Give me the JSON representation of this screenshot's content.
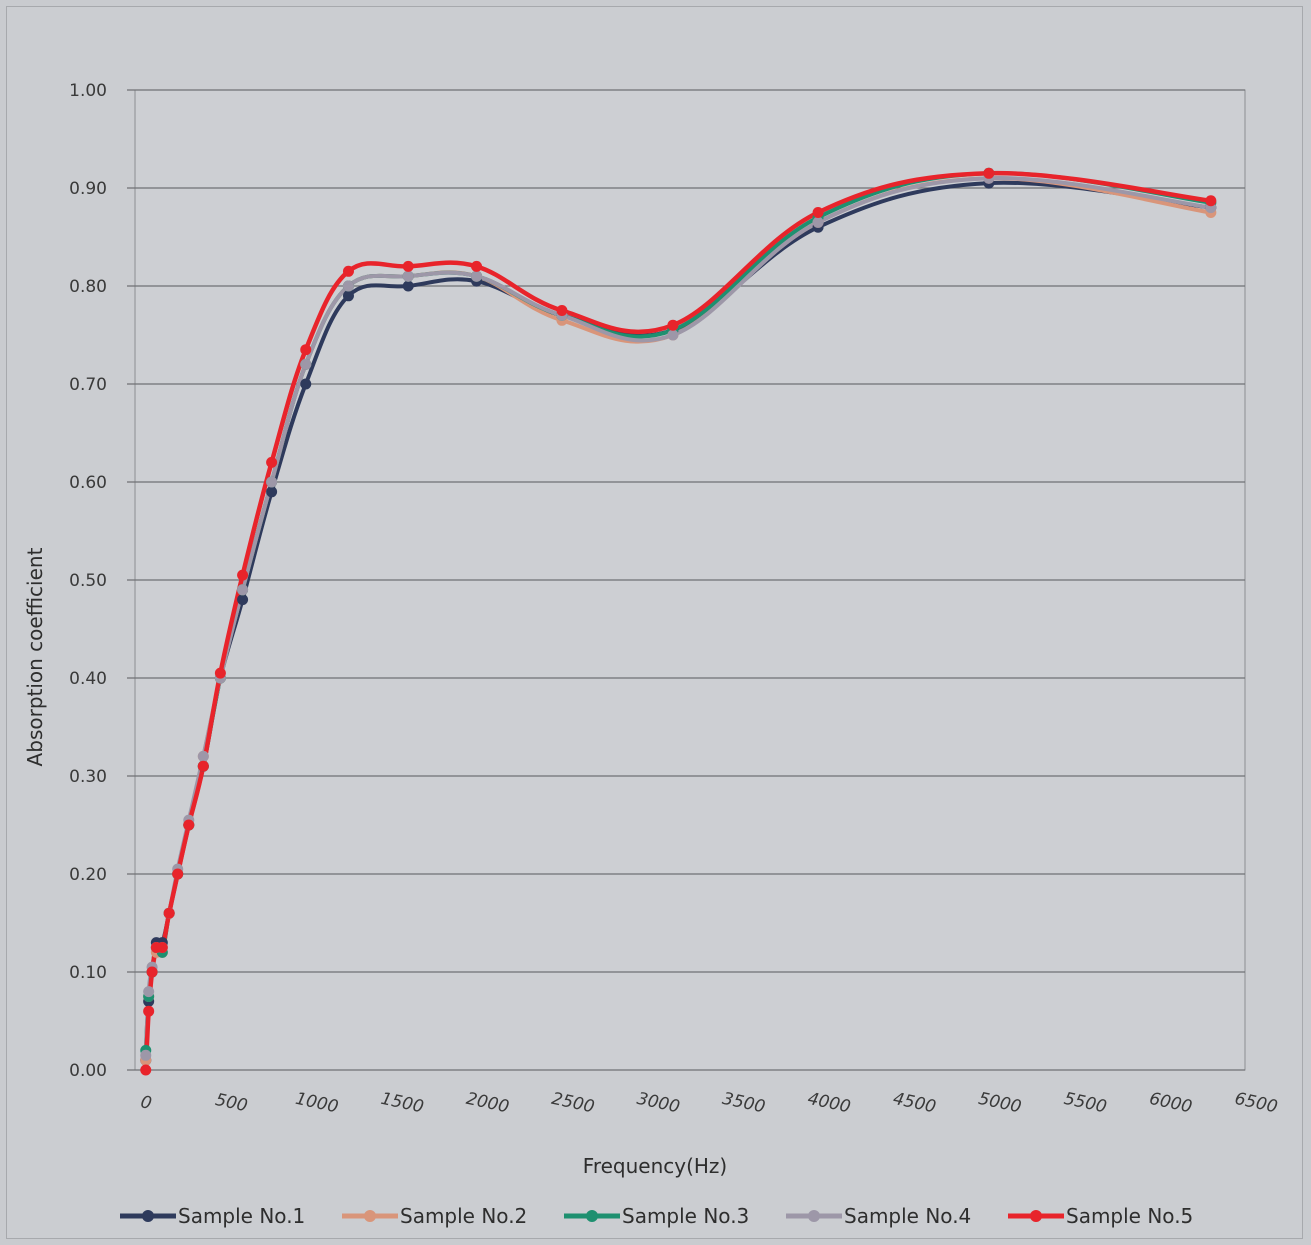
{
  "chart_data": {
    "type": "line",
    "title": "",
    "xlabel": "Frequency(Hz)",
    "ylabel": "Absorption coefficient",
    "xlim": [
      0,
      6500
    ],
    "ylim": [
      0,
      1.0
    ],
    "x_ticks": [
      "0",
      "500",
      "1000",
      "1500",
      "2000",
      "2500",
      "3000",
      "3500",
      "4000",
      "4500",
      "5000",
      "5500",
      "6000",
      "6500"
    ],
    "y_ticks": [
      "0.00",
      "0.10",
      "0.20",
      "0.30",
      "0.40",
      "0.50",
      "0.60",
      "0.70",
      "0.80",
      "0.90",
      "1.00"
    ],
    "grid": true,
    "legend_position": "bottom",
    "x": [
      63,
      80,
      100,
      125,
      160,
      200,
      250,
      315,
      400,
      500,
      630,
      800,
      1000,
      1250,
      1600,
      2000,
      2500,
      3150,
      4000,
      5000,
      6300
    ],
    "series": [
      {
        "name": "Sample No.1",
        "color": "#2e3a5c",
        "values": [
          0.01,
          0.07,
          0.1,
          0.13,
          0.13,
          0.16,
          0.2,
          0.25,
          0.31,
          0.4,
          0.48,
          0.59,
          0.7,
          0.79,
          0.8,
          0.805,
          0.77,
          0.755,
          0.86,
          0.905,
          0.88
        ]
      },
      {
        "name": "Sample No.2",
        "color": "#d9957a",
        "values": [
          0.01,
          0.075,
          0.1,
          0.12,
          0.12,
          0.16,
          0.2,
          0.25,
          0.32,
          0.4,
          0.49,
          0.6,
          0.72,
          0.8,
          0.81,
          0.81,
          0.765,
          0.75,
          0.865,
          0.91,
          0.875
        ]
      },
      {
        "name": "Sample No.3",
        "color": "#1e9070",
        "values": [
          0.02,
          0.075,
          0.1,
          0.125,
          0.12,
          0.16,
          0.2,
          0.25,
          0.31,
          0.4,
          0.49,
          0.6,
          0.72,
          0.8,
          0.81,
          0.81,
          0.77,
          0.755,
          0.87,
          0.915,
          0.885
        ]
      },
      {
        "name": "Sample No.4",
        "color": "#9d97a8",
        "values": [
          0.015,
          0.08,
          0.105,
          0.125,
          0.125,
          0.16,
          0.205,
          0.255,
          0.32,
          0.4,
          0.49,
          0.6,
          0.72,
          0.8,
          0.81,
          0.81,
          0.77,
          0.75,
          0.865,
          0.91,
          0.88
        ]
      },
      {
        "name": "Sample No.5",
        "color": "#e8242b",
        "values": [
          0.0,
          0.06,
          0.1,
          0.125,
          0.125,
          0.16,
          0.2,
          0.25,
          0.31,
          0.405,
          0.505,
          0.62,
          0.735,
          0.815,
          0.82,
          0.82,
          0.775,
          0.76,
          0.875,
          0.915,
          0.887
        ]
      }
    ]
  }
}
